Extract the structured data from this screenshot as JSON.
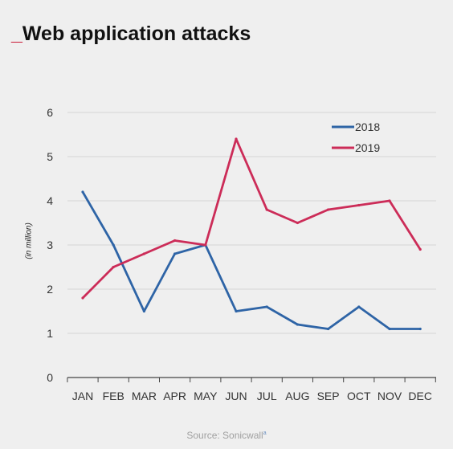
{
  "header": {
    "title_prefix": "_",
    "title": "Web application attacks"
  },
  "footer": {
    "source": "Source: Sonicwall",
    "source_mark": "a"
  },
  "chart_data": {
    "type": "line",
    "title": "Web application attacks",
    "xlabel": "",
    "ylabel": "(in million)",
    "ylim": [
      0,
      6
    ],
    "yticks": [
      0,
      1,
      2,
      3,
      4,
      5,
      6
    ],
    "grid": true,
    "legend_position": "top-right",
    "categories": [
      "JAN",
      "FEB",
      "MAR",
      "APR",
      "MAY",
      "JUN",
      "JUL",
      "AUG",
      "SEP",
      "OCT",
      "NOV",
      "DEC"
    ],
    "series": [
      {
        "name": "2018",
        "color": "#2e64a6",
        "values": [
          4.2,
          3.0,
          1.5,
          2.8,
          3.0,
          1.5,
          1.6,
          1.2,
          1.1,
          1.6,
          1.1,
          1.1
        ]
      },
      {
        "name": "2019",
        "color": "#cc2c58",
        "values": [
          1.8,
          2.5,
          2.8,
          3.1,
          3.0,
          5.4,
          3.8,
          3.5,
          3.8,
          3.9,
          4.0,
          2.9
        ]
      }
    ]
  }
}
